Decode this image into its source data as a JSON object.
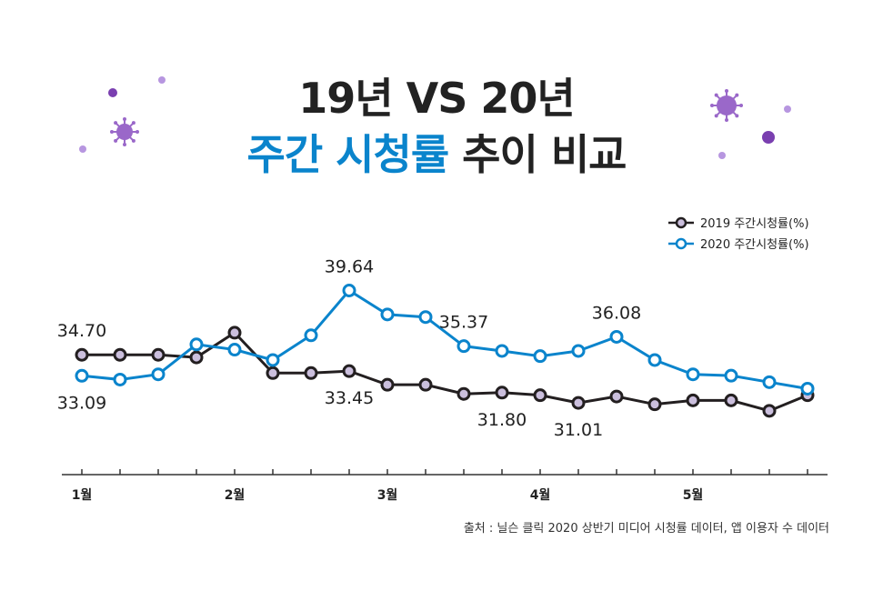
{
  "title": {
    "line1": "19년 VS 20년",
    "line2_highlight": "주간 시청률",
    "line2_rest": "추이 비교"
  },
  "source": "출처 : 닐슨 클릭 2020 상반기 미디어 시청률 데이터, 앱 이용자 수 데이터",
  "colors": {
    "series_2019": "#231f20",
    "marker_2019": "#cbbfdd",
    "series_2020": "#0a84cc",
    "virus": "#9a68c9"
  },
  "chart_data": {
    "type": "line",
    "x_ticks": [
      "1월",
      "2월",
      "3월",
      "4월",
      "5월"
    ],
    "x_tick_positions": [
      0,
      4,
      8,
      12,
      16
    ],
    "ylim": [
      25.5,
      41.7
    ],
    "grid": false,
    "legend": "top-right",
    "series": [
      {
        "name": "2019 주간시청률(%)",
        "values": [
          34.7,
          34.7,
          34.7,
          34.5,
          36.4,
          33.3,
          33.3,
          33.45,
          32.4,
          32.4,
          31.7,
          31.8,
          31.6,
          31.01,
          31.5,
          30.9,
          31.2,
          31.2,
          30.4,
          31.6
        ]
      },
      {
        "name": "2020 주간시청률(%)",
        "values": [
          33.09,
          32.8,
          33.2,
          35.5,
          35.1,
          34.3,
          36.2,
          39.64,
          37.8,
          37.6,
          35.37,
          35.0,
          34.6,
          35.0,
          36.08,
          34.3,
          33.2,
          33.1,
          32.6,
          32.1
        ]
      }
    ],
    "annotations": [
      {
        "series": 0,
        "index": 0,
        "text": "34.70",
        "pos": "above"
      },
      {
        "series": 1,
        "index": 0,
        "text": "33.09",
        "pos": "below"
      },
      {
        "series": 1,
        "index": 7,
        "text": "39.64",
        "pos": "above"
      },
      {
        "series": 0,
        "index": 7,
        "text": "33.45",
        "pos": "below"
      },
      {
        "series": 1,
        "index": 10,
        "text": "35.37",
        "pos": "above"
      },
      {
        "series": 0,
        "index": 11,
        "text": "31.80",
        "pos": "below"
      },
      {
        "series": 1,
        "index": 14,
        "text": "36.08",
        "pos": "above"
      },
      {
        "series": 0,
        "index": 13,
        "text": "31.01",
        "pos": "below"
      }
    ]
  }
}
